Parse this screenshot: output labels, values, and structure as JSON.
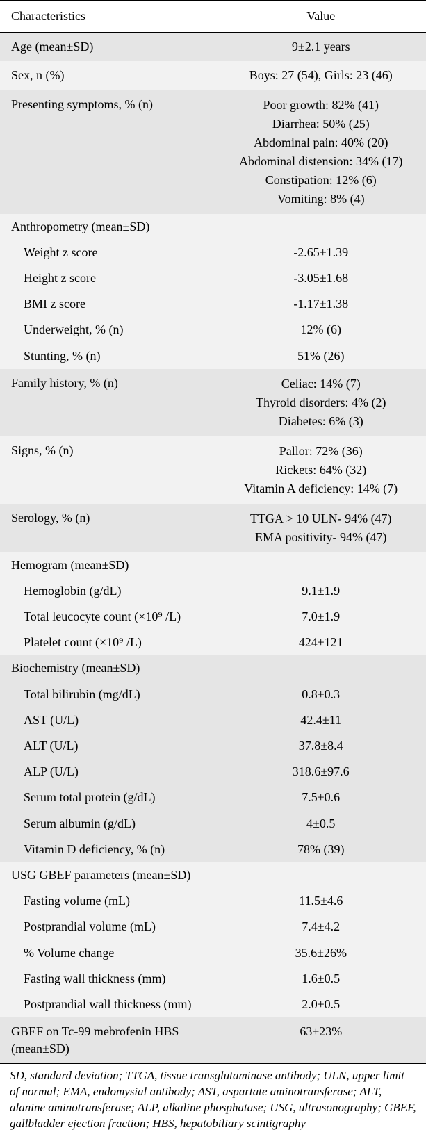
{
  "colors": {
    "shade": "#e5e5e5",
    "light": "#f2f2f2",
    "border": "#000000",
    "text": "#000000",
    "bg": "#ffffff"
  },
  "typography": {
    "family": "Times New Roman / Minion Pro serif",
    "base_size_pt": 14,
    "footnote_size_pt": 13
  },
  "header": {
    "c1": "Characteristics",
    "c2": "Value"
  },
  "rows": {
    "age": {
      "label": "Age (mean±SD)",
      "value": "9±2.1 years"
    },
    "sex": {
      "label": "Sex, n (%)",
      "value": "Boys: 27 (54), Girls: 23 (46)"
    },
    "symptoms": {
      "label": "Presenting symptoms, % (n)",
      "values": [
        "Poor growth: 82% (41)",
        "Diarrhea: 50% (25)",
        "Abdominal pain: 40% (20)",
        "Abdominal distension: 34% (17)",
        "Constipation: 12% (6)",
        "Vomiting: 8% (4)"
      ]
    },
    "anthro": {
      "label": "Anthropometry (mean±SD)",
      "items": [
        {
          "label": "Weight z score",
          "value": "-2.65±1.39"
        },
        {
          "label": "Height z score",
          "value": "-3.05±1.68"
        },
        {
          "label": "BMI z score",
          "value": "-1.17±1.38"
        },
        {
          "label": "Underweight, % (n)",
          "value": "12% (6)"
        },
        {
          "label": "Stunting, % (n)",
          "value": "51% (26)"
        }
      ]
    },
    "family": {
      "label": "Family history, % (n)",
      "values": [
        "Celiac: 14% (7)",
        "Thyroid disorders: 4% (2)",
        "Diabetes: 6% (3)"
      ]
    },
    "signs": {
      "label": "Signs, % (n)",
      "values": [
        "Pallor: 72% (36)",
        "Rickets: 64% (32)",
        "Vitamin A deficiency: 14% (7)"
      ]
    },
    "serology": {
      "label": "Serology, % (n)",
      "values": [
        "TTGA > 10 ULN- 94% (47)",
        "EMA positivity- 94% (47)"
      ]
    },
    "hemogram": {
      "label": "Hemogram (mean±SD)",
      "items": [
        {
          "label": "Hemoglobin (g/dL)",
          "value": "9.1±1.9"
        },
        {
          "label": "Total leucocyte count (×10⁹ /L)",
          "value": "7.0±1.9"
        },
        {
          "label": "Platelet count (×10⁹ /L)",
          "value": "424±121"
        }
      ]
    },
    "biochem": {
      "label": "Biochemistry (mean±SD)",
      "items": [
        {
          "label": "Total bilirubin (mg/dL)",
          "value": "0.8±0.3"
        },
        {
          "label": "AST (U/L)",
          "value": "42.4±11"
        },
        {
          "label": "ALT (U/L)",
          "value": "37.8±8.4"
        },
        {
          "label": "ALP (U/L)",
          "value": "318.6±97.6"
        },
        {
          "label": "Serum total protein (g/dL)",
          "value": "7.5±0.6"
        },
        {
          "label": "Serum albumin (g/dL)",
          "value": "4±0.5"
        },
        {
          "label": "Vitamin D deficiency, % (n)",
          "value": "78% (39)"
        }
      ]
    },
    "usg": {
      "label": "USG GBEF parameters (mean±SD)",
      "items": [
        {
          "label": "Fasting volume (mL)",
          "value": "11.5±4.6"
        },
        {
          "label": "Postprandial volume (mL)",
          "value": "7.4±4.2"
        },
        {
          "label": "% Volume change",
          "value": "35.6±26%"
        },
        {
          "label": "Fasting wall thickness (mm)",
          "value": "1.6±0.5"
        },
        {
          "label": "Postprandial wall thickness (mm)",
          "value": "2.0±0.5"
        }
      ]
    },
    "gbef": {
      "label": "GBEF on Tc-99 mebrofenin HBS (mean±SD)",
      "value": "63±23%"
    }
  },
  "footnote": "SD, standard deviation; TTGA, tissue transglutaminase antibody; ULN, upper limit of normal; EMA, endomysial antibody; AST, aspartate aminotransferase; ALT, alanine aminotransferase; ALP, alkaline phosphatase; USG, ultrasonography; GBEF, gallbladder ejection fraction; HBS, hepatobiliary scintigraphy"
}
